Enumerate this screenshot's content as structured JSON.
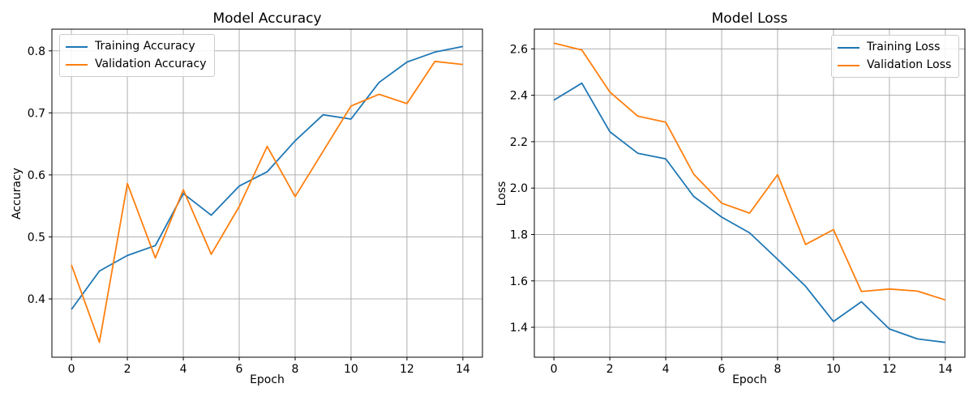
{
  "figure": {
    "background": "#ffffff",
    "grid_color": "#b0b0b0",
    "spine_color": "#000000",
    "text_color": "#000000"
  },
  "chart_data": [
    {
      "type": "line",
      "title": "Model Accuracy",
      "xlabel": "Epoch",
      "ylabel": "Accuracy",
      "grid": true,
      "legend_position": "upper left",
      "x": [
        0,
        1,
        2,
        3,
        4,
        5,
        6,
        7,
        8,
        9,
        10,
        11,
        12,
        13,
        14
      ],
      "series": [
        {
          "name": "Training Accuracy",
          "color": "#1f77b4",
          "values": [
            0.383,
            0.445,
            0.47,
            0.486,
            0.57,
            0.535,
            0.582,
            0.605,
            0.655,
            0.697,
            0.69,
            0.749,
            0.782,
            0.798,
            0.807
          ]
        },
        {
          "name": "Validation Accuracy",
          "color": "#ff7f0e",
          "values": [
            0.455,
            0.33,
            0.586,
            0.466,
            0.576,
            0.472,
            0.549,
            0.646,
            0.565,
            0.638,
            0.711,
            0.73,
            0.715,
            0.783,
            0.778
          ]
        }
      ],
      "xlim": [
        -0.7,
        14.7
      ],
      "ylim": [
        0.306,
        0.835
      ],
      "xticks": [
        0,
        2,
        4,
        6,
        8,
        10,
        12,
        14
      ],
      "xtick_labels": [
        "0",
        "2",
        "4",
        "6",
        "8",
        "10",
        "12",
        "14"
      ],
      "yticks": [
        0.4,
        0.5,
        0.6,
        0.7,
        0.8
      ],
      "ytick_labels": [
        "0.4",
        "0.5",
        "0.6",
        "0.7",
        "0.8"
      ]
    },
    {
      "type": "line",
      "title": "Model Loss",
      "xlabel": "Epoch",
      "ylabel": "Loss",
      "grid": true,
      "legend_position": "upper right",
      "x": [
        0,
        1,
        2,
        3,
        4,
        5,
        6,
        7,
        8,
        9,
        10,
        11,
        12,
        13,
        14
      ],
      "series": [
        {
          "name": "Training Loss",
          "color": "#1f77b4",
          "values": [
            2.379,
            2.452,
            2.243,
            2.15,
            2.126,
            1.964,
            1.875,
            1.807,
            1.693,
            1.577,
            1.425,
            1.51,
            1.393,
            1.35,
            1.335
          ]
        },
        {
          "name": "Validation Loss",
          "color": "#ff7f0e",
          "values": [
            2.625,
            2.595,
            2.414,
            2.31,
            2.284,
            2.06,
            1.935,
            1.892,
            2.058,
            1.757,
            1.821,
            1.554,
            1.565,
            1.556,
            1.518
          ]
        }
      ],
      "xlim": [
        -0.7,
        14.7
      ],
      "ylim": [
        1.271,
        2.685
      ],
      "xticks": [
        0,
        2,
        4,
        6,
        8,
        10,
        12,
        14
      ],
      "xtick_labels": [
        "0",
        "2",
        "4",
        "6",
        "8",
        "10",
        "12",
        "14"
      ],
      "yticks": [
        1.4,
        1.6,
        1.8,
        2.0,
        2.2,
        2.4,
        2.6
      ],
      "ytick_labels": [
        "1.4",
        "1.6",
        "1.8",
        "2.0",
        "2.2",
        "2.4",
        "2.6"
      ]
    }
  ]
}
